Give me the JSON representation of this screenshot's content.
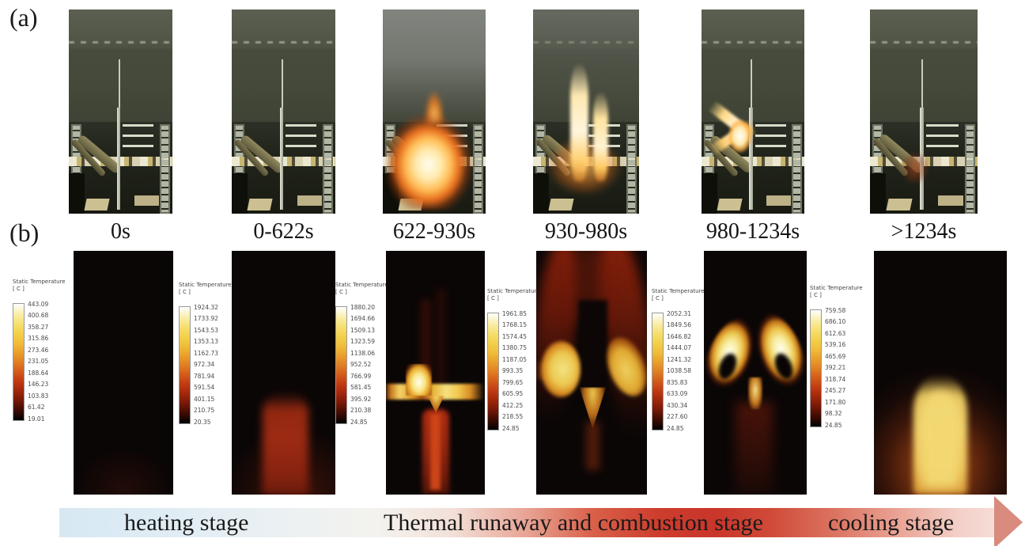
{
  "figure": {
    "label_a": "(a)",
    "label_b": "(b)"
  },
  "legend": {
    "title": "Static Temperature",
    "unit": "[ C ]"
  },
  "panels": [
    {
      "time_label": "0s",
      "ticks": [
        "443.09",
        "400.68",
        "358.27",
        "315.86",
        "273.46",
        "231.05",
        "188.64",
        "146.23",
        "103.83",
        "61.42",
        "19.01"
      ]
    },
    {
      "time_label": "0-622s",
      "ticks": [
        "1924.32",
        "1733.92",
        "1543.53",
        "1353.13",
        "1162.73",
        "972.34",
        "781.94",
        "591.54",
        "401.15",
        "210.75",
        "20.35"
      ]
    },
    {
      "time_label": "622-930s",
      "ticks": [
        "1880.20",
        "1694.66",
        "1509.13",
        "1323.59",
        "1138.06",
        "952.52",
        "766.99",
        "581.45",
        "395.92",
        "210.38",
        "24.85"
      ]
    },
    {
      "time_label": "930-980s",
      "ticks": [
        "1961.85",
        "1768.15",
        "1574.45",
        "1380.75",
        "1187.05",
        "993.35",
        "799.65",
        "605.95",
        "412.25",
        "218.55",
        "24.85"
      ]
    },
    {
      "time_label": "980-1234s",
      "ticks": [
        "2052.31",
        "1849.56",
        "1646.82",
        "1444.07",
        "1241.32",
        "1038.58",
        "835.83",
        "633.09",
        "430.34",
        "227.60",
        "24.85"
      ]
    },
    {
      "time_label": ">1234s",
      "ticks": [
        "759.58",
        "686.10",
        "612.63",
        "539.16",
        "465.69",
        "392.21",
        "318.74",
        "245.27",
        "171.80",
        "98.32",
        "24.85"
      ]
    }
  ],
  "stage_arrow": {
    "heating": "heating stage",
    "runaway": "Thermal runaway and combustion stage",
    "cooling": "cooling stage",
    "colors": {
      "start": "#d8e8f3",
      "mid": "#c9352a",
      "end": "#f6ddd6",
      "head": "#d98b7d"
    }
  },
  "colorbar_colors": {
    "max": "#ffffff",
    "mid": "#e07f22",
    "min": "#000000"
  }
}
